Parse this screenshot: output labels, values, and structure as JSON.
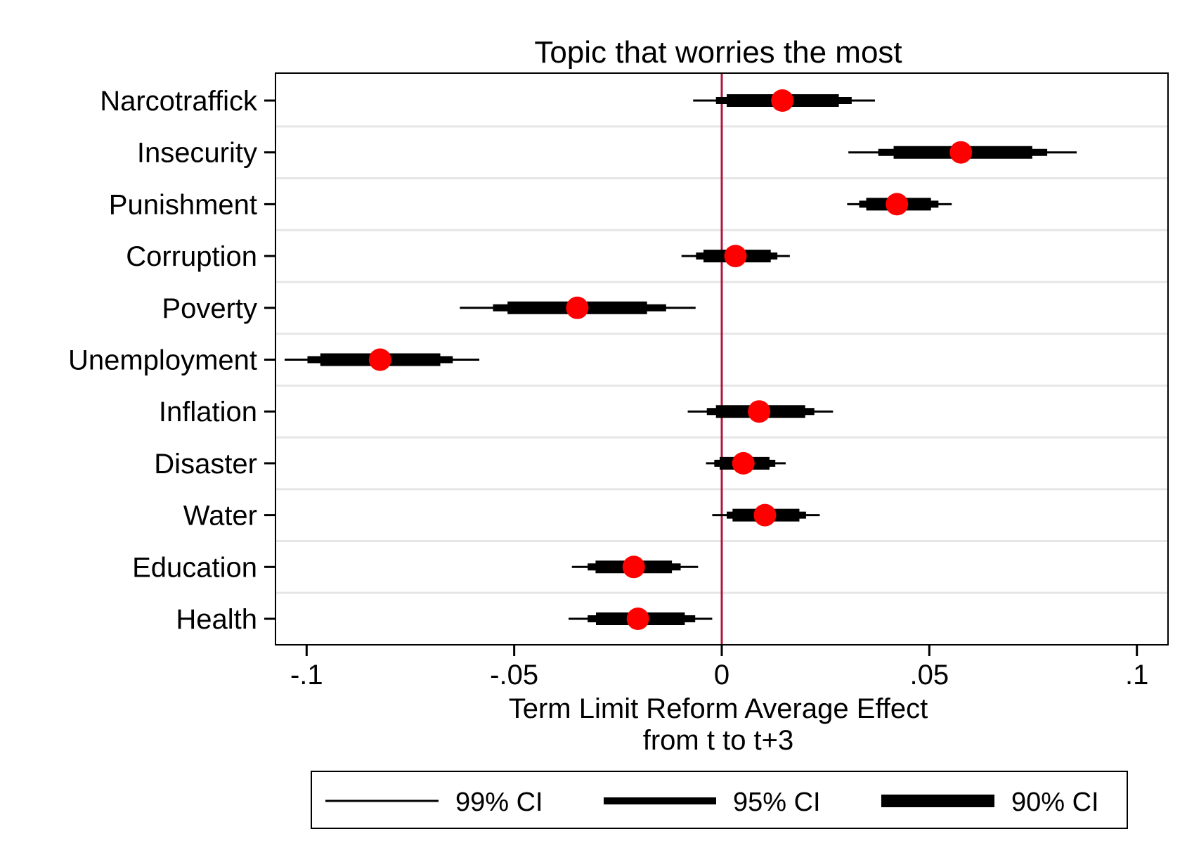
{
  "chart_data": {
    "type": "coefficient-plot",
    "title": "Topic that worries the most",
    "xlabel": [
      "Term Limit Reform Average Effect",
      "from t to t+3"
    ],
    "ylabel": "",
    "xlim": [
      -0.1075,
      0.1075
    ],
    "xticks": [
      {
        "value": -0.1,
        "label": "-.1"
      },
      {
        "value": -0.05,
        "label": "-.05"
      },
      {
        "value": 0,
        "label": "0"
      },
      {
        "value": 0.05,
        "label": ".05"
      },
      {
        "value": 0.1,
        "label": ".1"
      }
    ],
    "reference_line": 0,
    "grid": "horizontal",
    "legend_position": "bottom",
    "legend": [
      "99% CI",
      "95% CI",
      "90% CI"
    ],
    "categories": [
      "Narcotraffick",
      "Insecurity",
      "Punishment",
      "Corruption",
      "Poverty",
      "Unemployment",
      "Inflation",
      "Disaster",
      "Water",
      "Education",
      "Health"
    ],
    "estimates": [
      0.0146,
      0.0576,
      0.0422,
      0.0033,
      -0.0348,
      -0.0823,
      0.009,
      0.0052,
      0.0104,
      -0.0212,
      -0.0202
    ],
    "ci90": [
      [
        0.0012,
        0.0282
      ],
      [
        0.0414,
        0.0748
      ],
      [
        0.0348,
        0.0504
      ],
      [
        -0.0044,
        0.0118
      ],
      [
        -0.0516,
        -0.018
      ],
      [
        -0.0967,
        -0.0678
      ],
      [
        -0.0014,
        0.0201
      ],
      [
        -0.0005,
        0.0115
      ],
      [
        0.0026,
        0.0187
      ],
      [
        -0.0304,
        -0.012
      ],
      [
        -0.0303,
        -0.0089
      ]
    ],
    "ci95": [
      [
        -0.0014,
        0.0313
      ],
      [
        0.0377,
        0.0784
      ],
      [
        0.0331,
        0.0522
      ],
      [
        -0.0062,
        0.0134
      ],
      [
        -0.0551,
        -0.0134
      ],
      [
        -0.0998,
        -0.0648
      ],
      [
        -0.0036,
        0.0223
      ],
      [
        -0.0018,
        0.0129
      ],
      [
        0.0012,
        0.0203
      ],
      [
        -0.0323,
        -0.0099
      ],
      [
        -0.0323,
        -0.0064
      ]
    ],
    "ci99": [
      [
        -0.0069,
        0.0369
      ],
      [
        0.0305,
        0.0855
      ],
      [
        0.0302,
        0.0554
      ],
      [
        -0.0097,
        0.0164
      ],
      [
        -0.0631,
        -0.0063
      ],
      [
        -0.1053,
        -0.0584
      ],
      [
        -0.0082,
        0.0268
      ],
      [
        -0.0038,
        0.0154
      ],
      [
        -0.0023,
        0.0236
      ],
      [
        -0.0361,
        -0.0057
      ],
      [
        -0.0369,
        -0.0023
      ]
    ],
    "colors": {
      "point": "#ff0000",
      "ci": "#000000",
      "reference_line": "#b0173c",
      "grid": "#e6e6e6",
      "frame": "#000000"
    }
  }
}
